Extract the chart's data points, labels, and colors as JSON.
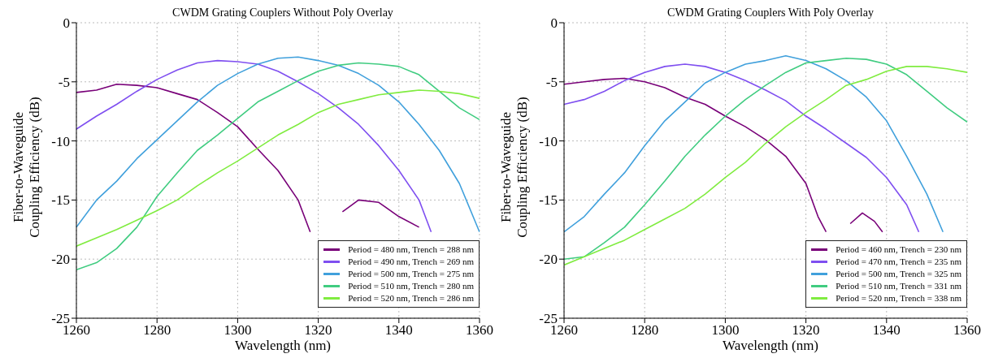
{
  "chart_data": [
    {
      "type": "line",
      "title": "CWDM Grating Couplers Without Poly Overlay",
      "xlabel": "Wavelength (nm)",
      "ylabel": "Fiber-to-Waveguide\nCoupling Efficiency (dB)",
      "xlim": [
        1260,
        1360
      ],
      "ylim": [
        -25,
        0
      ],
      "xticks": [
        1260,
        1280,
        1300,
        1320,
        1340,
        1360
      ],
      "yticks": [
        -25,
        -20,
        -15,
        -10,
        -5,
        0
      ],
      "grid": true,
      "legend": "bottom right",
      "marker": "none",
      "line_style": "solid",
      "series": [
        {
          "name": "Period = 480 nm, Trench = 288 nm",
          "color": "#780078",
          "x": [
            1260,
            1265,
            1270,
            1275,
            1280,
            1285,
            1290,
            1295,
            1300,
            1305,
            1310,
            1315,
            1318,
            1320,
            1326,
            1330,
            1335,
            1340,
            1345
          ],
          "values": [
            -5.9,
            -5.7,
            -5.2,
            -5.3,
            -5.5,
            -6.0,
            -6.5,
            -7.6,
            -8.8,
            -10.7,
            -12.5,
            -15.0,
            -17.7,
            null,
            -16.0,
            -15.0,
            -15.2,
            -16.4,
            -17.3
          ]
        },
        {
          "name": "Period = 490 nm, Trench = 269 nm",
          "color": "#7f4ff0",
          "x": [
            1260,
            1265,
            1270,
            1275,
            1280,
            1285,
            1290,
            1295,
            1300,
            1305,
            1310,
            1315,
            1320,
            1325,
            1330,
            1335,
            1340,
            1345,
            1348
          ],
          "values": [
            -9.0,
            -7.9,
            -6.9,
            -5.8,
            -4.8,
            -4.0,
            -3.4,
            -3.2,
            -3.3,
            -3.5,
            -4.1,
            -5.0,
            -6.0,
            -7.2,
            -8.6,
            -10.4,
            -12.5,
            -15.0,
            -17.7
          ]
        },
        {
          "name": "Period = 500 nm, Trench = 275 nm",
          "color": "#40a0dc",
          "x": [
            1260,
            1265,
            1270,
            1275,
            1280,
            1285,
            1290,
            1295,
            1300,
            1305,
            1310,
            1315,
            1320,
            1325,
            1330,
            1335,
            1340,
            1345,
            1350,
            1355,
            1360
          ],
          "values": [
            -17.3,
            -15.0,
            -13.4,
            -11.5,
            -9.9,
            -8.3,
            -6.7,
            -5.3,
            -4.3,
            -3.5,
            -3.0,
            -2.9,
            -3.2,
            -3.6,
            -4.3,
            -5.3,
            -6.7,
            -8.6,
            -10.8,
            -13.6,
            -17.7
          ]
        },
        {
          "name": "Period = 510 nm, Trench = 280 nm",
          "color": "#40cc80",
          "x": [
            1260,
            1265,
            1270,
            1275,
            1280,
            1285,
            1290,
            1295,
            1300,
            1305,
            1310,
            1315,
            1320,
            1325,
            1330,
            1335,
            1340,
            1345,
            1350,
            1355,
            1360
          ],
          "values": [
            -20.9,
            -20.3,
            -19.1,
            -17.3,
            -14.7,
            -12.7,
            -10.8,
            -9.5,
            -8.1,
            -6.7,
            -5.8,
            -4.9,
            -4.1,
            -3.6,
            -3.4,
            -3.5,
            -3.7,
            -4.4,
            -5.8,
            -7.2,
            -8.2
          ]
        },
        {
          "name": "Period = 520 nm, Trench = 286 nm",
          "color": "#80ec40",
          "x": [
            1260,
            1265,
            1270,
            1275,
            1280,
            1285,
            1290,
            1295,
            1300,
            1305,
            1310,
            1315,
            1320,
            1325,
            1330,
            1335,
            1340,
            1345,
            1350,
            1355,
            1360
          ],
          "values": [
            -18.9,
            -18.2,
            -17.5,
            -16.7,
            -15.9,
            -15.0,
            -13.8,
            -12.7,
            -11.7,
            -10.6,
            -9.5,
            -8.6,
            -7.6,
            -6.9,
            -6.5,
            -6.1,
            -5.9,
            -5.7,
            -5.8,
            -6.0,
            -6.4
          ]
        }
      ]
    },
    {
      "type": "line",
      "title": "CWDM Grating Couplers With Poly Overlay",
      "xlabel": "Wavelength (nm)",
      "ylabel": "Fiber-to-Waveguide\nCoupling Efficiency (dB)",
      "xlim": [
        1260,
        1360
      ],
      "ylim": [
        -25,
        0
      ],
      "xticks": [
        1260,
        1280,
        1300,
        1320,
        1340,
        1360
      ],
      "yticks": [
        -25,
        -20,
        -15,
        -10,
        -5,
        0
      ],
      "grid": true,
      "legend": "bottom right",
      "marker": "none",
      "line_style": "solid",
      "series": [
        {
          "name": "Period = 460 nm, Trench = 230 nm",
          "color": "#780078",
          "x": [
            1260,
            1265,
            1270,
            1275,
            1280,
            1285,
            1290,
            1295,
            1300,
            1305,
            1310,
            1315,
            1320,
            1323,
            1325,
            1328,
            1331,
            1334,
            1337,
            1339
          ],
          "values": [
            -5.2,
            -5.0,
            -4.8,
            -4.7,
            -5.0,
            -5.5,
            -6.3,
            -6.9,
            -7.9,
            -8.8,
            -9.9,
            -11.3,
            -13.6,
            -16.4,
            -17.7,
            null,
            -17.0,
            -16.1,
            -16.8,
            -17.7
          ]
        },
        {
          "name": "Period = 470 nm, Trench = 235 nm",
          "color": "#7f4ff0",
          "x": [
            1260,
            1265,
            1270,
            1275,
            1280,
            1285,
            1290,
            1295,
            1300,
            1305,
            1310,
            1315,
            1320,
            1325,
            1330,
            1335,
            1340,
            1345,
            1348
          ],
          "values": [
            -6.9,
            -6.5,
            -5.8,
            -4.9,
            -4.2,
            -3.7,
            -3.5,
            -3.7,
            -4.2,
            -4.9,
            -5.7,
            -6.6,
            -7.9,
            -9.0,
            -10.2,
            -11.4,
            -13.1,
            -15.4,
            -17.7
          ]
        },
        {
          "name": "Period = 500 nm, Trench = 325 nm",
          "color": "#40a0dc",
          "x": [
            1260,
            1265,
            1270,
            1275,
            1280,
            1285,
            1290,
            1295,
            1300,
            1305,
            1310,
            1315,
            1320,
            1325,
            1330,
            1335,
            1340,
            1345,
            1350,
            1354
          ],
          "values": [
            -17.7,
            -16.4,
            -14.5,
            -12.7,
            -10.4,
            -8.3,
            -6.7,
            -5.1,
            -4.2,
            -3.5,
            -3.2,
            -2.8,
            -3.2,
            -3.9,
            -4.9,
            -6.3,
            -8.3,
            -11.3,
            -14.5,
            -17.7
          ]
        },
        {
          "name": "Period = 510 nm, Trench = 331 nm",
          "color": "#40cc80",
          "x": [
            1260,
            1265,
            1270,
            1275,
            1280,
            1285,
            1290,
            1295,
            1300,
            1305,
            1310,
            1315,
            1320,
            1325,
            1330,
            1335,
            1340,
            1345,
            1350,
            1355,
            1360
          ],
          "values": [
            -20.0,
            -19.8,
            -18.6,
            -17.3,
            -15.4,
            -13.4,
            -11.3,
            -9.5,
            -7.9,
            -6.5,
            -5.3,
            -4.2,
            -3.4,
            -3.2,
            -3.0,
            -3.1,
            -3.5,
            -4.4,
            -5.8,
            -7.2,
            -8.4
          ]
        },
        {
          "name": "Period = 520 nm, Trench = 338 nm",
          "color": "#80ec40",
          "x": [
            1260,
            1265,
            1270,
            1275,
            1280,
            1285,
            1290,
            1295,
            1300,
            1305,
            1310,
            1315,
            1320,
            1325,
            1330,
            1335,
            1340,
            1345,
            1350,
            1355,
            1360
          ],
          "values": [
            -20.5,
            -19.8,
            -19.1,
            -18.4,
            -17.5,
            -16.6,
            -15.7,
            -14.5,
            -13.1,
            -11.8,
            -10.2,
            -8.8,
            -7.6,
            -6.5,
            -5.3,
            -4.8,
            -4.1,
            -3.7,
            -3.7,
            -3.9,
            -4.2
          ]
        }
      ]
    }
  ]
}
